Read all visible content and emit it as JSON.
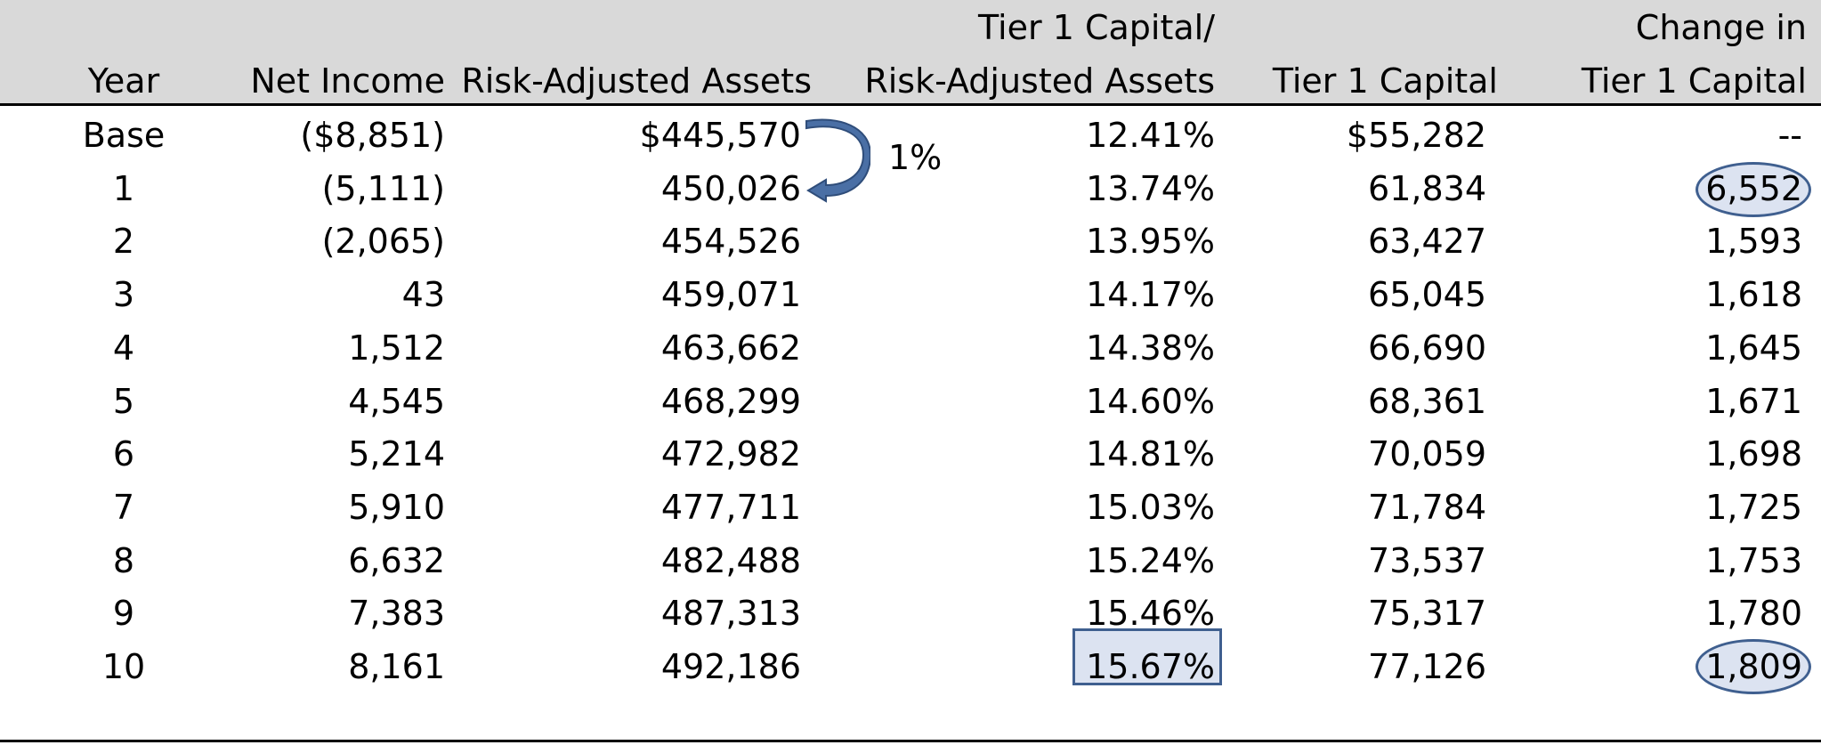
{
  "headers": {
    "year": "Year",
    "net_income": "Net Income",
    "raa": "Risk-Adjusted Assets",
    "ratio_line1": "Tier 1 Capital/",
    "ratio_line2": "Risk-Adjusted Assets",
    "tier1": "Tier 1 Capital",
    "change_line1": "Change in",
    "change_line2": "Tier 1 Capital"
  },
  "growth_note": "1%",
  "rows": [
    {
      "year": "Base",
      "net_income": "($8,851)",
      "raa": "$445,570",
      "ratio": "12.41%",
      "tier1": "$55,282",
      "change": "--"
    },
    {
      "year": "1",
      "net_income": "(5,111)",
      "raa": "450,026",
      "ratio": "13.74%",
      "tier1": "61,834",
      "change": "6,552"
    },
    {
      "year": "2",
      "net_income": "(2,065)",
      "raa": "454,526",
      "ratio": "13.95%",
      "tier1": "63,427",
      "change": "1,593"
    },
    {
      "year": "3",
      "net_income": "43",
      "raa": "459,071",
      "ratio": "14.17%",
      "tier1": "65,045",
      "change": "1,618"
    },
    {
      "year": "4",
      "net_income": "1,512",
      "raa": "463,662",
      "ratio": "14.38%",
      "tier1": "66,690",
      "change": "1,645"
    },
    {
      "year": "5",
      "net_income": "4,545",
      "raa": "468,299",
      "ratio": "14.60%",
      "tier1": "68,361",
      "change": "1,671"
    },
    {
      "year": "6",
      "net_income": "5,214",
      "raa": "472,982",
      "ratio": "14.81%",
      "tier1": "70,059",
      "change": "1,698"
    },
    {
      "year": "7",
      "net_income": "5,910",
      "raa": "477,711",
      "ratio": "15.03%",
      "tier1": "71,784",
      "change": "1,725"
    },
    {
      "year": "8",
      "net_income": "6,632",
      "raa": "482,488",
      "ratio": "15.24%",
      "tier1": "73,537",
      "change": "1,753"
    },
    {
      "year": "9",
      "net_income": "7,383",
      "raa": "487,313",
      "ratio": "15.46%",
      "tier1": "75,317",
      "change": "1,780"
    },
    {
      "year": "10",
      "net_income": "8,161",
      "raa": "492,186",
      "ratio": "15.67%",
      "tier1": "77,126",
      "change": "1,809"
    }
  ],
  "colors": {
    "header_band": "#d9d9d9",
    "highlight_fill": "#dce3f1",
    "highlight_border": "#3f5f8f",
    "arrow": "#4a6fa5"
  }
}
